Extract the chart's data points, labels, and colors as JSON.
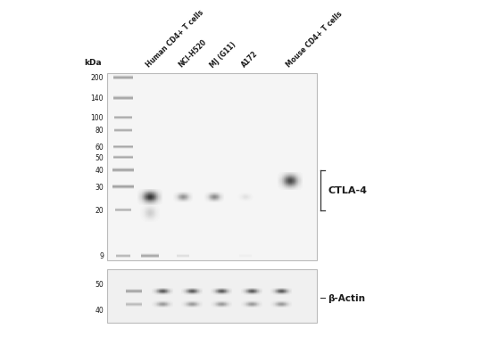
{
  "bg_color": "#ffffff",
  "main_panel_bg": "#f5f5f5",
  "bottom_panel_bg": "#f0f0f0",
  "kda_labels_main": [
    "200",
    "140",
    "100",
    "80",
    "60",
    "50",
    "40",
    "30",
    "20",
    "9"
  ],
  "kda_labels_bottom": [
    "50",
    "40"
  ],
  "lane_labels": [
    "Human CD4+ T cells",
    "NCI-H520",
    "MJ (G11)",
    "A172",
    "Mouse CD4+ T cells"
  ],
  "ctla4_label": "CTLA-4",
  "actin_label": "β-Actin",
  "kda_title": "kDa",
  "label_color": "#1a1a1a",
  "ladder_color": "#888888",
  "dark_band": "#444444",
  "med_band": "#888888",
  "light_band": "#bbbbbb"
}
